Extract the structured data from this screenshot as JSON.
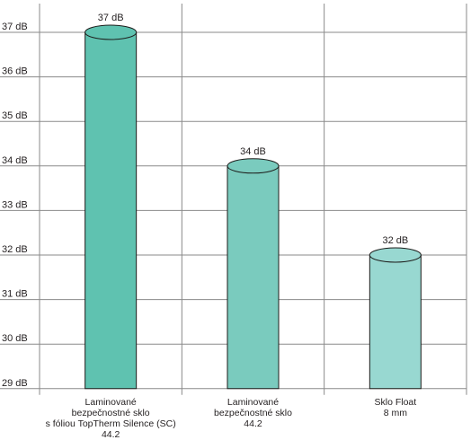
{
  "chart_data": {
    "type": "bar",
    "bar_shape": "cylinder",
    "categories": [
      [
        "Laminované",
        "bezpečnostné sklo",
        "s fóliou TopTherm Silence (SC)",
        "44.2"
      ],
      [
        "Laminované",
        "bezpečnostné sklo",
        "44.2"
      ],
      [
        "Sklo Float",
        "8 mm"
      ]
    ],
    "values": [
      37,
      34,
      32
    ],
    "value_labels": [
      "37 dB",
      "34 dB",
      "32 dB"
    ],
    "unit": "dB",
    "ylim": [
      29,
      37
    ],
    "yticks": [
      29,
      30,
      31,
      32,
      33,
      34,
      35,
      36,
      37
    ],
    "ytick_labels": [
      "29 dB",
      "30 dB",
      "31 dB",
      "32 dB",
      "33 dB",
      "34 dB",
      "35 dB",
      "36 dB",
      "37 dB"
    ],
    "title": "",
    "xlabel": "",
    "ylabel": "",
    "grid": true,
    "colors": [
      "#5fc2b0",
      "#7acbbe",
      "#98d8d1"
    ],
    "edge_color": "#1d1d1b",
    "grid_color": "#8a8a8a"
  }
}
